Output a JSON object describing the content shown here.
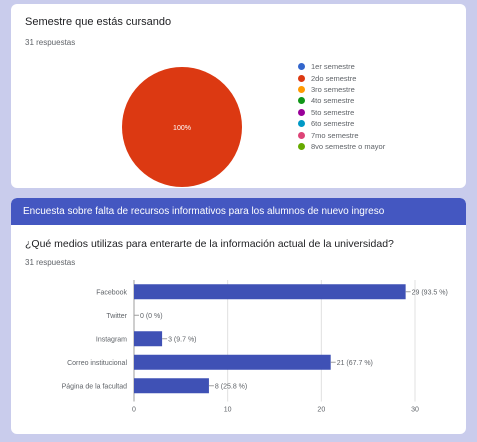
{
  "q1": {
    "title": "Semestre que estás cursando",
    "count": "31 respuestas"
  },
  "section": {
    "title": "Encuesta sobre falta de recursos informativos para los alumnos de nuevo ingreso"
  },
  "q2": {
    "title": "¿Qué medios utilizas para enterarte de la información actual de la universidad?",
    "count": "31 respuestas"
  },
  "chart_data": [
    {
      "type": "pie",
      "categories": [
        "1er semestre",
        "2do semestre",
        "3ro semestre",
        "4to semestre",
        "5to semestre",
        "6to semestre",
        "7mo semestre",
        "8vo semestre o mayor"
      ],
      "values": [
        0,
        31,
        0,
        0,
        0,
        0,
        0,
        0
      ],
      "colors": [
        "#3366cc",
        "#dc3912",
        "#ff9900",
        "#109618",
        "#990099",
        "#0099c6",
        "#dd4477",
        "#66aa00"
      ],
      "slice_label": "100%",
      "legend": "right"
    },
    {
      "type": "bar",
      "orientation": "horizontal",
      "categories": [
        "Facebook",
        "Twitter",
        "Instagram",
        "Correo institucional",
        "Página de la facultad"
      ],
      "values": [
        29,
        0,
        3,
        21,
        8
      ],
      "data_labels": [
        "29 (93.5 %)",
        "0 (0 %)",
        "3 (9.7 %)",
        "21 (67.7 %)",
        "8 (25.8 %)"
      ],
      "xlim": [
        0,
        30
      ],
      "xticks": [
        "0",
        "10",
        "20",
        "30"
      ],
      "color": "#3f51b5",
      "grid": true
    }
  ]
}
